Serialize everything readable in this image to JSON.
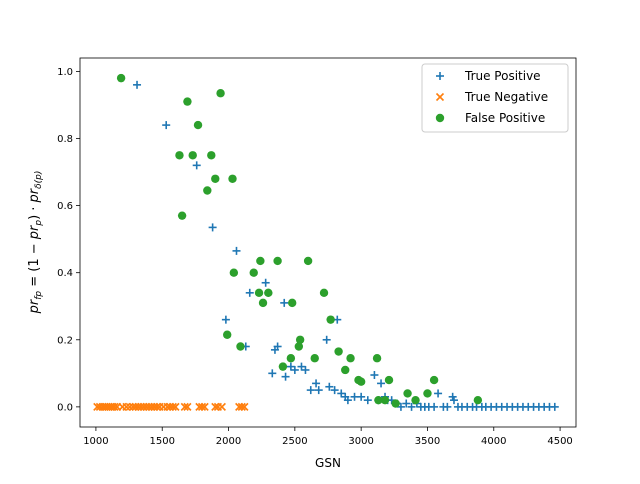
{
  "chart_data": {
    "type": "scatter",
    "xlabel": "GSN",
    "ylabel_parts": {
      "pr": "pr",
      "fp_sub": "fp",
      "eq": " = (1 − ",
      "p_sub": "p",
      "mid": ") · ",
      "delta_sub": "δ(p)"
    },
    "xlim": [
      880,
      4620
    ],
    "ylim": [
      -0.06,
      1.04
    ],
    "xticks": [
      1000,
      1500,
      2000,
      2500,
      3000,
      3500,
      4000,
      4500
    ],
    "yticks": [
      0.0,
      0.2,
      0.4,
      0.6,
      0.8,
      1.0
    ],
    "xtick_labels": [
      "1000",
      "1500",
      "2000",
      "2500",
      "3000",
      "3500",
      "4000",
      "4500"
    ],
    "ytick_labels": [
      "0.0",
      "0.2",
      "0.4",
      "0.6",
      "0.8",
      "1.0"
    ],
    "legend_position": "top-right",
    "series": [
      {
        "name": "True Positive",
        "marker": "plus",
        "color": "#1f77b4",
        "points": [
          [
            1310,
            0.96
          ],
          [
            1530,
            0.84
          ],
          [
            1760,
            0.72
          ],
          [
            1880,
            0.535
          ],
          [
            2060,
            0.465
          ],
          [
            1980,
            0.26
          ],
          [
            2130,
            0.18
          ],
          [
            2160,
            0.34
          ],
          [
            2280,
            0.37
          ],
          [
            2300,
            0.34
          ],
          [
            2330,
            0.1
          ],
          [
            2350,
            0.17
          ],
          [
            2370,
            0.18
          ],
          [
            2420,
            0.31
          ],
          [
            2430,
            0.09
          ],
          [
            2470,
            0.12
          ],
          [
            2500,
            0.11
          ],
          [
            2550,
            0.12
          ],
          [
            2580,
            0.11
          ],
          [
            2620,
            0.05
          ],
          [
            2660,
            0.07
          ],
          [
            2680,
            0.05
          ],
          [
            2740,
            0.2
          ],
          [
            2760,
            0.06
          ],
          [
            2800,
            0.05
          ],
          [
            2820,
            0.26
          ],
          [
            2850,
            0.04
          ],
          [
            2880,
            0.03
          ],
          [
            2900,
            0.02
          ],
          [
            2950,
            0.03
          ],
          [
            3000,
            0.03
          ],
          [
            3050,
            0.02
          ],
          [
            3100,
            0.095
          ],
          [
            3130,
            0.02
          ],
          [
            3150,
            0.07
          ],
          [
            3180,
            0.03
          ],
          [
            3200,
            0.02
          ],
          [
            3230,
            0.02
          ],
          [
            3270,
            0.01
          ],
          [
            3300,
            0.0
          ],
          [
            3340,
            0.01
          ],
          [
            3380,
            0.0
          ],
          [
            3420,
            0.01
          ],
          [
            3450,
            0.0
          ],
          [
            3480,
            0.0
          ],
          [
            3510,
            0.0
          ],
          [
            3550,
            0.0
          ],
          [
            3580,
            0.04
          ],
          [
            3620,
            0.0
          ],
          [
            3650,
            0.0
          ],
          [
            3690,
            0.03
          ],
          [
            3700,
            0.02
          ],
          [
            3730,
            0.0
          ],
          [
            3760,
            0.0
          ],
          [
            3800,
            0.0
          ],
          [
            3840,
            0.0
          ],
          [
            3870,
            0.0
          ],
          [
            3910,
            0.0
          ],
          [
            3940,
            0.0
          ],
          [
            3980,
            0.0
          ],
          [
            4020,
            0.0
          ],
          [
            4060,
            0.0
          ],
          [
            4100,
            0.0
          ],
          [
            4140,
            0.0
          ],
          [
            4180,
            0.0
          ],
          [
            4220,
            0.0
          ],
          [
            4260,
            0.0
          ],
          [
            4300,
            0.0
          ],
          [
            4340,
            0.0
          ],
          [
            4380,
            0.0
          ],
          [
            4420,
            0.0
          ],
          [
            4460,
            0.0
          ]
        ]
      },
      {
        "name": "True Negative",
        "marker": "x",
        "color": "#ff7f0e",
        "points": [
          [
            1010,
            0.0
          ],
          [
            1030,
            0.0
          ],
          [
            1050,
            0.0
          ],
          [
            1065,
            0.0
          ],
          [
            1080,
            0.0
          ],
          [
            1095,
            0.0
          ],
          [
            1110,
            0.0
          ],
          [
            1125,
            0.0
          ],
          [
            1140,
            0.0
          ],
          [
            1160,
            0.0
          ],
          [
            1200,
            0.0
          ],
          [
            1230,
            0.0
          ],
          [
            1255,
            0.0
          ],
          [
            1280,
            0.0
          ],
          [
            1300,
            0.0
          ],
          [
            1320,
            0.0
          ],
          [
            1340,
            0.0
          ],
          [
            1360,
            0.0
          ],
          [
            1380,
            0.0
          ],
          [
            1400,
            0.0
          ],
          [
            1420,
            0.0
          ],
          [
            1440,
            0.0
          ],
          [
            1460,
            0.0
          ],
          [
            1480,
            0.0
          ],
          [
            1510,
            0.0
          ],
          [
            1540,
            0.0
          ],
          [
            1560,
            0.0
          ],
          [
            1580,
            0.0
          ],
          [
            1600,
            0.0
          ],
          [
            1670,
            0.0
          ],
          [
            1690,
            0.0
          ],
          [
            1780,
            0.0
          ],
          [
            1800,
            0.0
          ],
          [
            1820,
            0.0
          ],
          [
            1900,
            0.0
          ],
          [
            1920,
            0.0
          ],
          [
            1950,
            0.0
          ],
          [
            2080,
            0.0
          ],
          [
            2100,
            0.0
          ],
          [
            2120,
            0.0
          ]
        ]
      },
      {
        "name": "False Positive",
        "marker": "circle",
        "color": "#2ca02c",
        "points": [
          [
            1190,
            0.98
          ],
          [
            1690,
            0.91
          ],
          [
            1940,
            0.935
          ],
          [
            1770,
            0.84
          ],
          [
            1630,
            0.75
          ],
          [
            1730,
            0.75
          ],
          [
            1870,
            0.75
          ],
          [
            1900,
            0.68
          ],
          [
            2030,
            0.68
          ],
          [
            1840,
            0.645
          ],
          [
            1650,
            0.57
          ],
          [
            2240,
            0.435
          ],
          [
            2370,
            0.435
          ],
          [
            2600,
            0.435
          ],
          [
            2040,
            0.4
          ],
          [
            2190,
            0.4
          ],
          [
            2230,
            0.34
          ],
          [
            2300,
            0.34
          ],
          [
            2720,
            0.34
          ],
          [
            2260,
            0.31
          ],
          [
            2480,
            0.31
          ],
          [
            2770,
            0.26
          ],
          [
            1990,
            0.215
          ],
          [
            2540,
            0.2
          ],
          [
            2090,
            0.18
          ],
          [
            2530,
            0.18
          ],
          [
            2830,
            0.165
          ],
          [
            2470,
            0.145
          ],
          [
            2650,
            0.145
          ],
          [
            2920,
            0.145
          ],
          [
            3120,
            0.145
          ],
          [
            2410,
            0.12
          ],
          [
            2880,
            0.11
          ],
          [
            2980,
            0.08
          ],
          [
            3210,
            0.08
          ],
          [
            3550,
            0.08
          ],
          [
            3000,
            0.075
          ],
          [
            3350,
            0.04
          ],
          [
            3500,
            0.04
          ],
          [
            3130,
            0.02
          ],
          [
            3180,
            0.02
          ],
          [
            3260,
            0.01
          ],
          [
            3410,
            0.02
          ],
          [
            3880,
            0.02
          ]
        ]
      }
    ]
  }
}
